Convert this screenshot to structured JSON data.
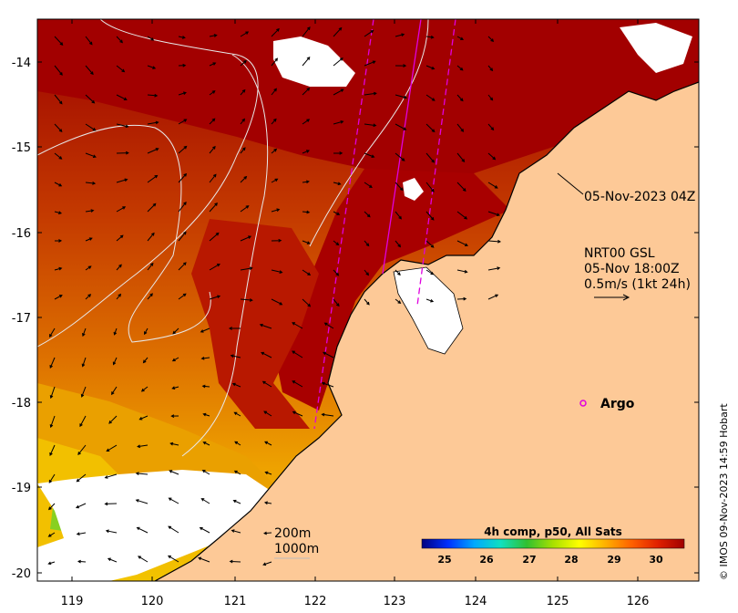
{
  "axes": {
    "y_ticks": [
      "-14",
      "-15",
      "-16",
      "-17",
      "-18",
      "-19",
      "-20"
    ],
    "x_ticks": [
      "119",
      "120",
      "121",
      "122",
      "123",
      "124",
      "125",
      "126"
    ]
  },
  "annotations": {
    "swath_time": "05-Nov-2023 04Z",
    "current_model": "NRT00 GSL",
    "current_time": "05-Nov 18:00Z",
    "current_scale": "0.5m/s (1kt 24h)",
    "argo_label": "Argo",
    "depth_200": "200m",
    "depth_1000": "1000m"
  },
  "colorbar": {
    "title": "4h comp, p50, All Sats",
    "ticks": [
      "25",
      "26",
      "27",
      "28",
      "29",
      "30"
    ],
    "colors": [
      "#00007f",
      "#0030ff",
      "#00a8ff",
      "#10e0c0",
      "#30c030",
      "#a8e000",
      "#ffff00",
      "#ffb000",
      "#ff6000",
      "#e02000",
      "#a00000"
    ]
  },
  "credit": "© IMOS 09-Nov-2023 14:59 Hobart",
  "colors": {
    "land": "#fdc997",
    "warm": "#a80000",
    "mid": "#d85a00",
    "cool": "#f0b000",
    "cloud": "#ffffff",
    "track": "#e000e0"
  }
}
